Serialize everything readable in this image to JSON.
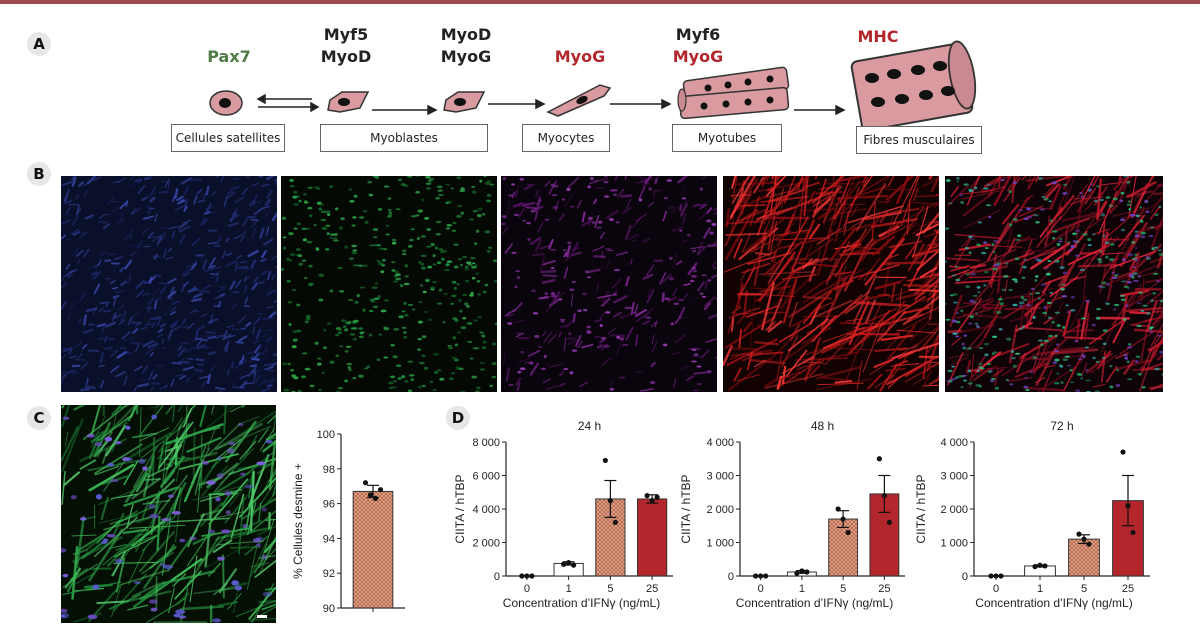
{
  "panels": {
    "a": "A",
    "b": "B",
    "c": "C",
    "d": "D"
  },
  "pathway": {
    "genes": [
      {
        "lines": [
          "Pax7"
        ],
        "colors": [
          "#4f7d46"
        ]
      },
      {
        "lines": [
          "Myf5",
          "MyoD"
        ],
        "colors": [
          "#222222",
          "#222222"
        ]
      },
      {
        "lines": [
          "MyoD",
          "MyoG"
        ],
        "colors": [
          "#222222",
          "#222222"
        ]
      },
      {
        "lines": [
          "MyoG"
        ],
        "colors": [
          "#b3262c"
        ]
      },
      {
        "lines": [
          "Myf6",
          "MyoG"
        ],
        "colors": [
          "#222222",
          "#b3262c"
        ]
      },
      {
        "lines": [
          "MHC"
        ],
        "colors": [
          "#b3262c"
        ]
      }
    ],
    "stages": [
      "Cellules satellites",
      "Myoblastes",
      "Myocytes",
      "Myotubes",
      "Fibres musculaires"
    ]
  },
  "colors": {
    "cell_fill": "#d99aa0",
    "bar_dark_red": "#b3262c",
    "bar_hatched": "#e8a88a",
    "nucleus": "#111111"
  },
  "micrographs": [
    {
      "channel": "blue"
    },
    {
      "channel": "green"
    },
    {
      "channel": "purple"
    },
    {
      "channel": "red"
    },
    {
      "channel": "merge"
    }
  ],
  "chart_data": [
    {
      "type": "bar",
      "title": "",
      "ylabel": "% Cellules desmine +",
      "categories": [
        ""
      ],
      "values": [
        96.7
      ],
      "error": [
        0.35
      ],
      "points": [
        [
          97.2,
          96.5,
          96.3,
          96.8
        ]
      ],
      "ylim": [
        90,
        100
      ],
      "yticks": [
        "90",
        "92",
        "94",
        "96",
        "98",
        "100"
      ],
      "yticks_values": [
        90,
        92,
        94,
        96,
        98,
        100
      ]
    },
    {
      "type": "bar",
      "title": "24 h",
      "xlabel": "Concentration d’IFNγ (ng/mL)",
      "ylabel": "CIITA / hTBP",
      "categories": [
        "0",
        "1",
        "5",
        "25"
      ],
      "values": [
        0,
        750,
        4600,
        4600
      ],
      "error": [
        0,
        100,
        1100,
        250
      ],
      "points": [
        [
          0,
          0,
          0
        ],
        [
          700,
          800,
          650
        ],
        [
          6900,
          4500,
          3200
        ],
        [
          4800,
          4500,
          4700
        ]
      ],
      "ylim": [
        0,
        8000
      ],
      "yticks": [
        "0",
        "2 000",
        "4 000",
        "6 000",
        "8 000"
      ],
      "yticks_values": [
        0,
        2000,
        4000,
        6000,
        8000
      ]
    },
    {
      "type": "bar",
      "title": "48 h",
      "xlabel": "Concentration d’IFNγ (ng/mL)",
      "ylabel": "CIITA / hTBP",
      "categories": [
        "0",
        "1",
        "5",
        "25"
      ],
      "values": [
        0,
        120,
        1700,
        2450
      ],
      "error": [
        0,
        40,
        250,
        550
      ],
      "points": [
        [
          0,
          0,
          0
        ],
        [
          80,
          150,
          120
        ],
        [
          2000,
          1700,
          1300
        ],
        [
          3500,
          2400,
          1600
        ]
      ],
      "ylim": [
        0,
        4000
      ],
      "yticks": [
        "0",
        "1 000",
        "2 000",
        "3 000",
        "4 000"
      ],
      "yticks_values": [
        0,
        1000,
        2000,
        3000,
        4000
      ]
    },
    {
      "type": "bar",
      "title": "72 h",
      "xlabel": "Concentration d’IFNγ (ng/mL)",
      "ylabel": "CIITA / hTBP",
      "categories": [
        "0",
        "1",
        "5",
        "25"
      ],
      "values": [
        0,
        300,
        1100,
        2250
      ],
      "error": [
        0,
        30,
        130,
        750
      ],
      "points": [
        [
          0,
          0,
          0
        ],
        [
          280,
          320,
          300
        ],
        [
          1250,
          1100,
          950
        ],
        [
          3700,
          2100,
          1300
        ]
      ],
      "ylim": [
        0,
        4000
      ],
      "yticks": [
        "0",
        "1 000",
        "2 000",
        "3 000",
        "4 000"
      ],
      "yticks_values": [
        0,
        1000,
        2000,
        3000,
        4000
      ]
    }
  ]
}
